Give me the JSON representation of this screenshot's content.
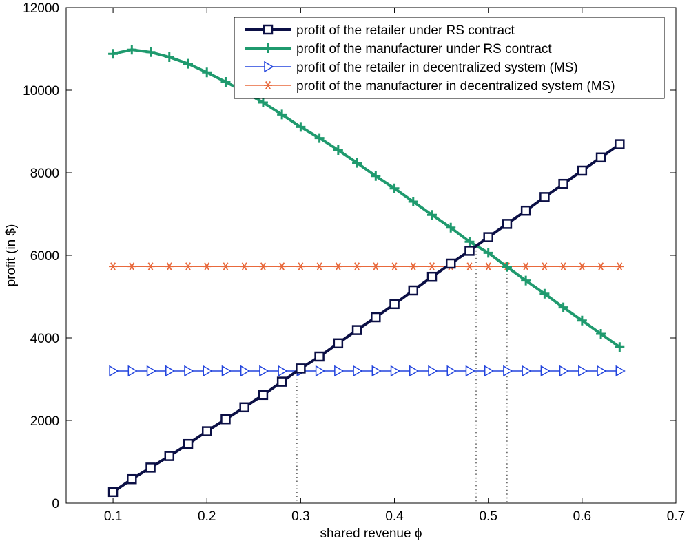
{
  "chart_data": {
    "type": "line",
    "title": "",
    "xlabel": "shared revenue ϕ",
    "ylabel": "profit (in $)",
    "xlim": [
      0.05,
      0.7
    ],
    "ylim": [
      0,
      12000
    ],
    "xticks": [
      0.1,
      0.2,
      0.3,
      0.4,
      0.5,
      0.6,
      0.7
    ],
    "yticks": [
      0,
      2000,
      4000,
      6000,
      8000,
      10000,
      12000
    ],
    "xtick_labels": [
      "0.1",
      "0.2",
      "0.3",
      "0.4",
      "0.5",
      "0.6",
      "0.7"
    ],
    "ytick_labels": [
      "0",
      "2000",
      "4000",
      "6000",
      "8000",
      "10000",
      "12000"
    ],
    "grid": false,
    "legend_position": "top-right",
    "x": [
      0.1,
      0.12,
      0.14,
      0.16,
      0.18,
      0.2,
      0.22,
      0.24,
      0.26,
      0.28,
      0.3,
      0.32,
      0.34,
      0.36,
      0.38,
      0.4,
      0.42,
      0.44,
      0.46,
      0.48,
      0.5,
      0.52,
      0.54,
      0.56,
      0.58,
      0.6,
      0.62,
      0.64
    ],
    "series": [
      {
        "name": "profit of the retailer under RS contract",
        "color": "#0b0f45",
        "marker": "square",
        "line_width": 4,
        "values": [
          270,
          580,
          860,
          1140,
          1430,
          1740,
          2030,
          2320,
          2620,
          2940,
          3260,
          3550,
          3870,
          4190,
          4500,
          4820,
          5150,
          5480,
          5800,
          6110,
          6440,
          6760,
          7080,
          7410,
          7730,
          8050,
          8370,
          8690
        ]
      },
      {
        "name": "profit of the manufacturer under RS contract",
        "color": "#1f9a6e",
        "marker": "plus",
        "line_width": 4,
        "values": [
          10880,
          10980,
          10920,
          10800,
          10640,
          10430,
          10200,
          9960,
          9700,
          9410,
          9110,
          8840,
          8550,
          8240,
          7920,
          7620,
          7300,
          6980,
          6670,
          6330,
          6060,
          5720,
          5390,
          5070,
          4740,
          4420,
          4100,
          3780
        ]
      },
      {
        "name": "profit of the retailer in decentralized system (MS)",
        "color": "#2244dd",
        "marker": "triangle-right",
        "line_width": 1.5,
        "values": [
          3200,
          3200,
          3200,
          3200,
          3200,
          3200,
          3200,
          3200,
          3200,
          3200,
          3200,
          3200,
          3200,
          3200,
          3200,
          3200,
          3200,
          3200,
          3200,
          3200,
          3200,
          3200,
          3200,
          3200,
          3200,
          3200,
          3200,
          3200
        ]
      },
      {
        "name": "profit of the manufacturer in decentralized system (MS)",
        "color": "#e8693c",
        "marker": "asterisk",
        "line_width": 1.5,
        "values": [
          5730,
          5730,
          5730,
          5730,
          5730,
          5730,
          5730,
          5730,
          5730,
          5730,
          5730,
          5730,
          5730,
          5730,
          5730,
          5730,
          5730,
          5730,
          5730,
          5730,
          5730,
          5730,
          5730,
          5730,
          5730,
          5730,
          5730,
          5730
        ]
      }
    ],
    "reference_lines": [
      {
        "x": 0.296,
        "y": 3200
      },
      {
        "x": 0.487,
        "y": 6210
      },
      {
        "x": 0.52,
        "y": 5730
      }
    ]
  }
}
